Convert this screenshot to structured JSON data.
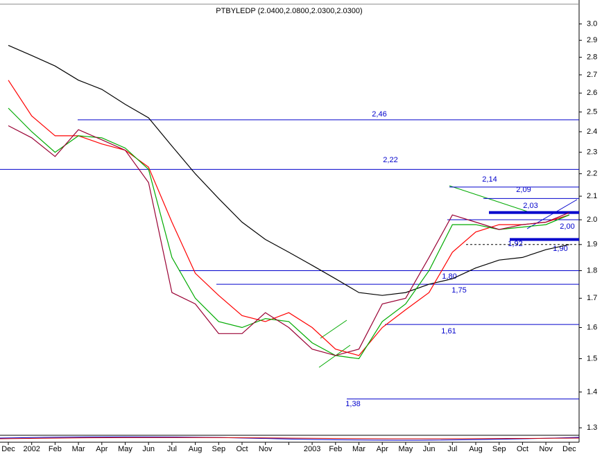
{
  "chart_data": {
    "type": "line",
    "title": "PTBYLEDP (2.0400,2.0800,2.0300,2.0300)",
    "categories": [
      "Dec",
      "2002",
      "Feb",
      "Mar",
      "Apr",
      "May",
      "Jun",
      "Jul",
      "Aug",
      "Sep",
      "Oct",
      "Nov",
      null,
      "2003",
      "Feb",
      "Mar",
      "Apr",
      "May",
      "Jun",
      "Jul",
      "Aug",
      "Sep",
      "Oct",
      "Nov",
      "Dec"
    ],
    "series": [
      {
        "color": "#000000",
        "values": [
          2.87,
          2.81,
          2.75,
          2.67,
          2.62,
          2.54,
          2.47,
          2.33,
          2.2,
          2.09,
          1.99,
          1.92,
          1.87,
          1.82,
          1.77,
          1.72,
          1.71,
          1.72,
          1.75,
          1.77,
          1.81,
          1.84,
          1.85,
          1.88,
          1.9
        ]
      },
      {
        "color": "#ff0000",
        "values": [
          2.67,
          2.48,
          2.38,
          2.38,
          2.34,
          2.31,
          2.23,
          1.99,
          1.79,
          1.71,
          1.64,
          1.62,
          1.65,
          1.6,
          1.53,
          1.51,
          1.6,
          1.66,
          1.72,
          1.87,
          1.95,
          1.98,
          1.98,
          1.99,
          2.02
        ]
      },
      {
        "color": "#00aa00",
        "values": [
          2.52,
          2.4,
          2.3,
          2.38,
          2.37,
          2.32,
          2.22,
          1.85,
          1.7,
          1.62,
          1.6,
          1.63,
          1.62,
          1.55,
          1.51,
          1.5,
          1.62,
          1.68,
          1.8,
          1.98,
          1.98,
          1.96,
          1.97,
          1.98,
          2.02
        ]
      },
      {
        "color": "#990033",
        "values": [
          2.43,
          2.37,
          2.28,
          2.41,
          2.36,
          2.31,
          2.16,
          1.72,
          1.68,
          1.58,
          1.58,
          1.65,
          1.6,
          1.53,
          1.51,
          1.53,
          1.68,
          1.7,
          1.85,
          2.02,
          1.99,
          1.96,
          1.98,
          1.99,
          2.03
        ]
      }
    ],
    "levels": [
      {
        "value": 2.46,
        "label": "2,46",
        "style": "thin"
      },
      {
        "value": 2.22,
        "label": "2,22",
        "style": "thin"
      },
      {
        "value": 2.14,
        "label": "2,14",
        "style": "thin"
      },
      {
        "value": 2.09,
        "label": "2,09",
        "style": "thin"
      },
      {
        "value": 2.03,
        "label": "2,03",
        "style": "thick"
      },
      {
        "value": 2.0,
        "label": "2,00",
        "style": "thin"
      },
      {
        "value": 1.92,
        "label": "1,92",
        "style": "thick"
      },
      {
        "value": 1.9,
        "label": "1,90",
        "style": "dashed"
      },
      {
        "value": 1.8,
        "label": "1,80",
        "style": "thin"
      },
      {
        "value": 1.75,
        "label": "1,75",
        "style": "thin"
      },
      {
        "value": 1.61,
        "label": "1,61",
        "style": "thin"
      },
      {
        "value": 1.38,
        "label": "1,38",
        "style": "thin"
      }
    ],
    "level_color": "#0000cc",
    "log_y": true,
    "ylim": [
      1.28,
      3.13
    ],
    "yticks": [
      {
        "value": 3.0,
        "label": "3.0"
      },
      2.9,
      2.8,
      2.7,
      2.6,
      2.5,
      2.4,
      2.3,
      2.2,
      2.1,
      {
        "value": 2.0,
        "label": "2.0"
      },
      1.9,
      1.8,
      1.7,
      1.6,
      1.5,
      1.4,
      1.3
    ]
  }
}
